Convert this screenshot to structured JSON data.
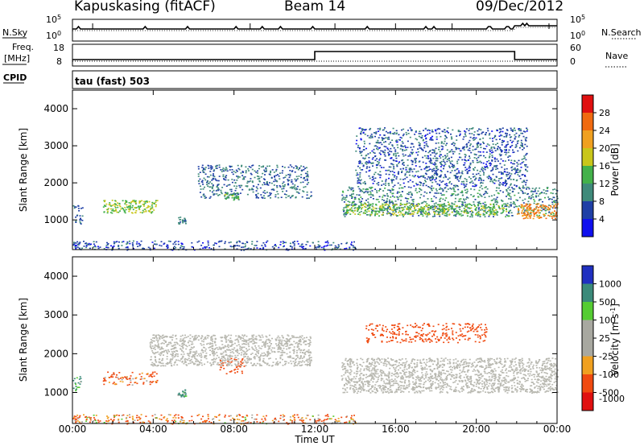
{
  "header": {
    "station": "Kapuskasing (fitACF)",
    "beam": "Beam 14",
    "date": "09/Dec/2012"
  },
  "strip_labels": {
    "nsky": "N.Sky",
    "nsearch": "N.Search",
    "freq": "Freq.",
    "mhz": "[MHz]",
    "nave": "Nave",
    "cpid": "CPID",
    "cpid_value": "tau (fast) 503"
  },
  "strip_ticks": {
    "noise_left": [
      "10^5",
      "10^0"
    ],
    "noise_right": [
      "10^5",
      "10^0"
    ],
    "freq_left": [
      "18",
      "8"
    ],
    "nave_right": [
      "60",
      "0"
    ]
  },
  "colors": {
    "power_scale": [
      "#1010ee",
      "#1f3fa6",
      "#3f8a7a",
      "#43b14a",
      "#c9c61a",
      "#f0a020",
      "#f06a10",
      "#e01010"
    ],
    "velocity_scale": [
      "#e01010",
      "#f04a10",
      "#f0a020",
      "#a8a8a0",
      "#a8a8a0",
      "#55cc33",
      "#3b8a7a",
      "#2030c0"
    ],
    "ground_scatter": "#b8b8b0"
  },
  "chart_data": [
    {
      "type": "heatmap",
      "panel": "power",
      "ylabel": "Slant Range [km]",
      "yticks": [
        "1000",
        "2000",
        "3000",
        "4000"
      ],
      "ylim": [
        200,
        4500
      ],
      "xlim": [
        0,
        24
      ],
      "colorbar_label": "Power [dB]",
      "colorbar_ticks": [
        "4",
        "8",
        "12",
        "16",
        "20",
        "24",
        "28"
      ],
      "scatter_regions": [
        {
          "t": [
            0.0,
            0.5
          ],
          "r": [
            900,
            1450
          ],
          "level": 8
        },
        {
          "t": [
            1.5,
            4.2
          ],
          "r": [
            1200,
            1550
          ],
          "level": 16
        },
        {
          "t": [
            5.2,
            5.6
          ],
          "r": [
            900,
            1100
          ],
          "level": 8
        },
        {
          "t": [
            6.2,
            11.8
          ],
          "r": [
            1600,
            2500
          ],
          "level": 8
        },
        {
          "t": [
            7.5,
            8.2
          ],
          "r": [
            1550,
            1750
          ],
          "level": 14
        },
        {
          "t": [
            13.3,
            24.0
          ],
          "r": [
            1100,
            1900
          ],
          "level": 10
        },
        {
          "t": [
            13.5,
            21.5
          ],
          "r": [
            1150,
            1450
          ],
          "level": 15
        },
        {
          "t": [
            22.0,
            24.0
          ],
          "r": [
            1050,
            1450
          ],
          "level": 24
        },
        {
          "t": [
            14.0,
            22.5
          ],
          "r": [
            1900,
            3500
          ],
          "level": 7
        },
        {
          "t": [
            0.0,
            14.0
          ],
          "r": [
            200,
            450
          ],
          "level": 6
        }
      ]
    },
    {
      "type": "heatmap",
      "panel": "velocity",
      "ylabel": "Slant Range [km]",
      "yticks": [
        "1000",
        "2000",
        "3000",
        "4000"
      ],
      "ylim": [
        200,
        4500
      ],
      "xlim": [
        0,
        24
      ],
      "colorbar_label": "Velocity [m s^-1]",
      "colorbar_ticks": [
        "1000",
        "500",
        "100",
        "25",
        "-25",
        "-100",
        "-500",
        "-1000"
      ],
      "xticks": [
        "00:00",
        "04:00",
        "08:00",
        "12:00",
        "16:00",
        "20:00",
        "00:00"
      ],
      "xlabel": "Time UT",
      "scatter_regions": [
        {
          "t": [
            0.0,
            0.5
          ],
          "r": [
            1050,
            1450
          ],
          "type": "ionospheric",
          "velocity": 150
        },
        {
          "t": [
            1.5,
            4.2
          ],
          "r": [
            1200,
            1550
          ],
          "type": "ionospheric",
          "velocity": -150
        },
        {
          "t": [
            5.2,
            5.6
          ],
          "r": [
            900,
            1100
          ],
          "type": "ionospheric",
          "velocity": 150
        },
        {
          "t": [
            7.2,
            8.5
          ],
          "r": [
            1500,
            1900
          ],
          "type": "ionospheric",
          "velocity": -300
        },
        {
          "t": [
            3.8,
            11.8
          ],
          "r": [
            1700,
            2500
          ],
          "type": "ground",
          "velocity": 0
        },
        {
          "t": [
            13.3,
            24.0
          ],
          "r": [
            1000,
            1900
          ],
          "type": "ground",
          "velocity": 0
        },
        {
          "t": [
            14.5,
            20.5
          ],
          "r": [
            2300,
            2800
          ],
          "type": "ionospheric",
          "velocity": -300
        },
        {
          "t": [
            0.0,
            14.0
          ],
          "r": [
            200,
            450
          ],
          "type": "ionospheric",
          "velocity": -100
        }
      ]
    }
  ]
}
